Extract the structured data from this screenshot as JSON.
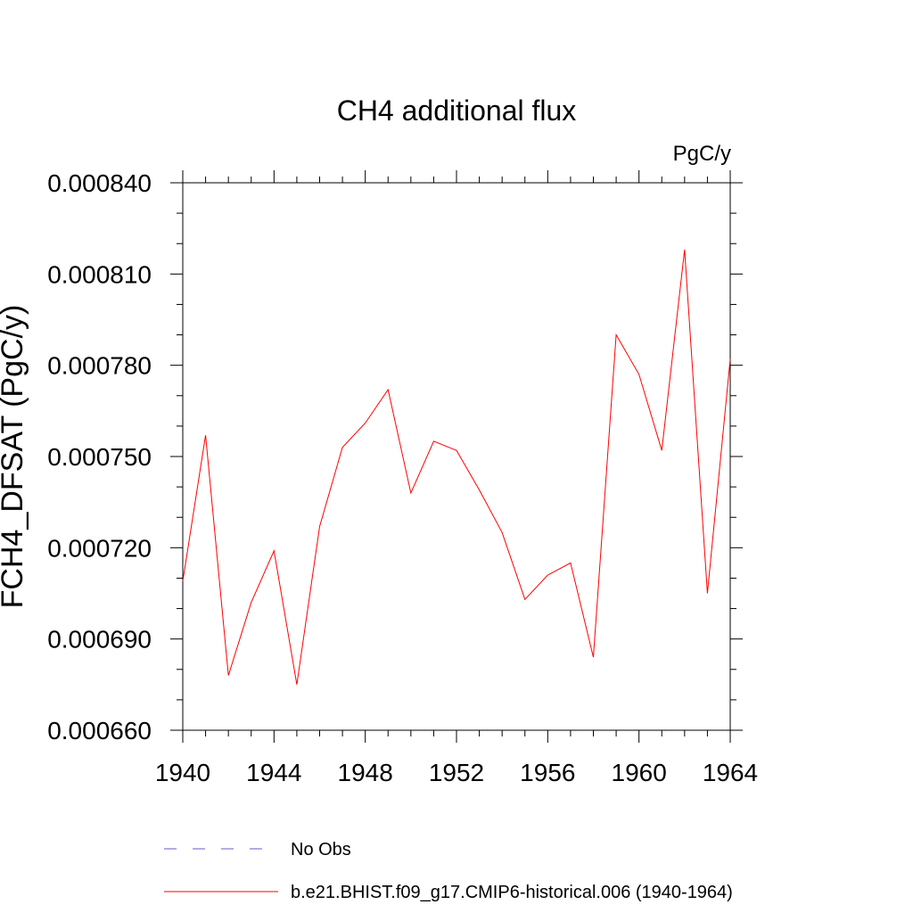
{
  "chart_data": {
    "type": "line",
    "title": "CH4 additional flux",
    "units_label": "PgC/y",
    "ylabel": "FCH4_DFSAT  (PgC/y)",
    "xlabel": "",
    "xlim": [
      1940,
      1964
    ],
    "ylim": [
      0.00066,
      0.00084
    ],
    "x_ticks": [
      1940,
      1944,
      1948,
      1952,
      1956,
      1960,
      1964
    ],
    "x_tick_labels": [
      "1940",
      "1944",
      "1948",
      "1952",
      "1956",
      "1960",
      "1964"
    ],
    "y_ticks": [
      0.00066,
      0.00069,
      0.00072,
      0.00075,
      0.00078,
      0.00081,
      0.00084
    ],
    "y_tick_labels": [
      "0.000660",
      "0.000690",
      "0.000720",
      "0.000750",
      "0.000780",
      "0.000810",
      "0.000840"
    ],
    "grid": false,
    "legend_placement": "bottom",
    "legend": [
      {
        "label": "No Obs",
        "color": "#6a5acd",
        "style": "dashed"
      },
      {
        "label": "b.e21.BHIST.f09_g17.CMIP6-historical.006 (1940-1964)",
        "color": "#ff0000",
        "style": "solid"
      }
    ],
    "x": [
      1940,
      1941,
      1942,
      1943,
      1944,
      1945,
      1946,
      1947,
      1948,
      1949,
      1950,
      1951,
      1952,
      1953,
      1954,
      1955,
      1956,
      1957,
      1958,
      1959,
      1960,
      1961,
      1962,
      1963,
      1964
    ],
    "series": [
      {
        "name": "b.e21.BHIST.f09_g17.CMIP6-historical.006 (1940-1964)",
        "color": "#ff0000",
        "values": [
          0.000709,
          0.000757,
          0.000678,
          0.000702,
          0.000719,
          0.000675,
          0.000727,
          0.000753,
          0.000761,
          0.000772,
          0.000738,
          0.000755,
          0.000752,
          0.000739,
          0.000725,
          0.000703,
          0.000711,
          0.000715,
          0.000684,
          0.00079,
          0.000777,
          0.000752,
          0.000818,
          0.000705,
          0.000782
        ]
      }
    ]
  }
}
